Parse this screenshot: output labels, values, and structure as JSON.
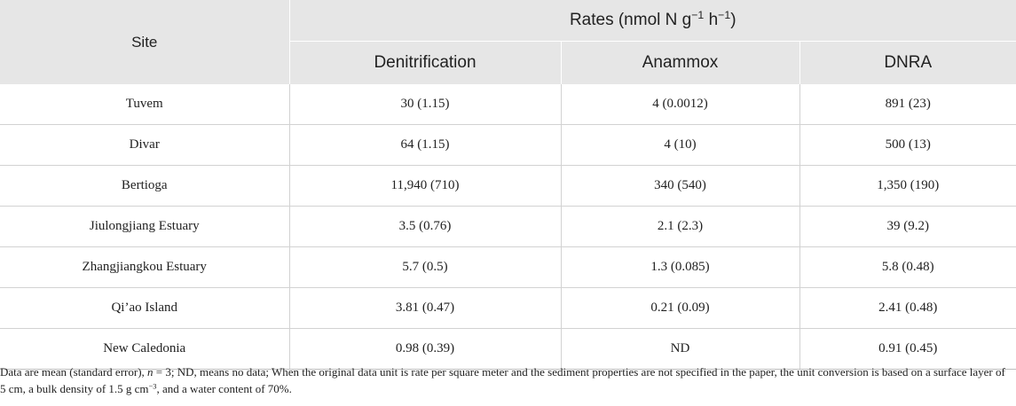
{
  "table": {
    "site_header": "Site",
    "rates_header": {
      "prefix": "Rates (nmol N g",
      "exp1": "−1",
      "middle": " h",
      "exp2": "−1",
      "suffix": ")"
    },
    "columns": [
      "Denitrification",
      "Anammox",
      "DNRA"
    ],
    "rows": [
      {
        "site": "Tuvem",
        "denitrification": "30 (1.15)",
        "anammox": "4 (0.0012)",
        "dnra": "891 (23)"
      },
      {
        "site": "Divar",
        "denitrification": "64 (1.15)",
        "anammox": "4 (10)",
        "dnra": "500 (13)"
      },
      {
        "site": "Bertioga",
        "denitrification": "11,940 (710)",
        "anammox": "340 (540)",
        "dnra": "1,350 (190)"
      },
      {
        "site": "Jiulongjiang Estuary",
        "denitrification": "3.5 (0.76)",
        "anammox": "2.1 (2.3)",
        "dnra": "39 (9.2)"
      },
      {
        "site": "Zhangjiangkou Estuary",
        "denitrification": "5.7 (0.5)",
        "anammox": "1.3 (0.085)",
        "dnra": "5.8 (0.48)"
      },
      {
        "site": "Qi’ao Island",
        "denitrification": "3.81 (0.47)",
        "anammox": "0.21 (0.09)",
        "dnra": "2.41 (0.48)"
      },
      {
        "site": "New Caledonia",
        "denitrification": "0.98 (0.39)",
        "anammox": "ND",
        "dnra": "0.91 (0.45)"
      }
    ]
  },
  "footnote": {
    "part1": "Data are mean (standard error), ",
    "n_symbol": "n",
    "part2": " = 3; ND, means no data; When the original data unit is rate per square meter and the sediment properties are not specified in the paper, the unit conversion is based on a surface layer of 5 cm, a bulk density of 1.5 g cm",
    "exp": "−3",
    "part3": ", and a water content of 70%."
  },
  "colors": {
    "header_bg": "#e6e6e6",
    "rule": "#d2d2d2",
    "text": "#222222"
  }
}
